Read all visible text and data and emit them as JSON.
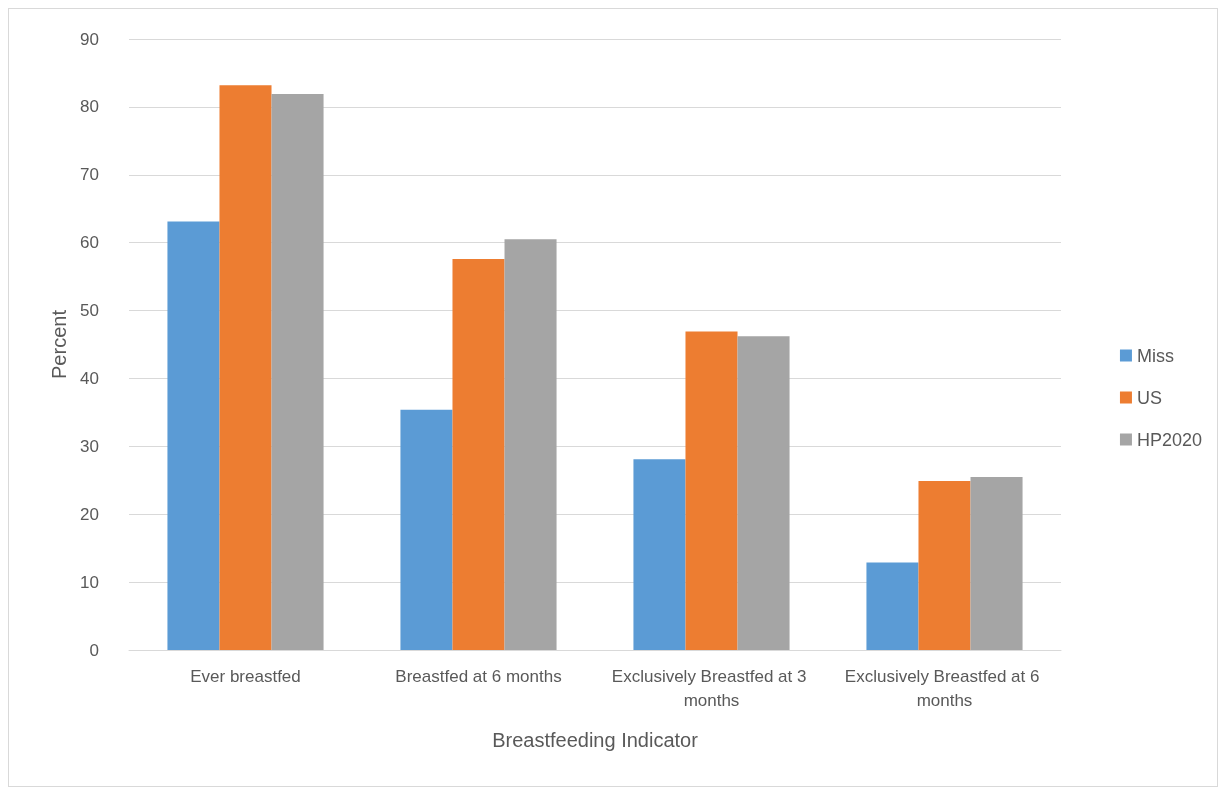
{
  "chart_data": {
    "type": "bar",
    "xlabel": "Breastfeeding Indicator",
    "ylabel": "Percent",
    "categories": [
      "Ever breastfed",
      "Breastfed at 6 months",
      "Exclusively Breastfed at 3 months",
      "Exclusively Breastfed at 6 months"
    ],
    "series": [
      {
        "name": "Miss",
        "color": "#5b9bd5",
        "values": [
          63.1,
          35.4,
          28.1,
          12.9
        ]
      },
      {
        "name": "US",
        "color": "#ed7d31",
        "values": [
          83.2,
          57.6,
          46.9,
          24.9
        ]
      },
      {
        "name": "HP2020",
        "color": "#a5a5a5",
        "values": [
          81.9,
          60.5,
          46.2,
          25.5
        ]
      }
    ],
    "ylim": [
      0,
      90
    ],
    "yticks": [
      0,
      10,
      20,
      30,
      40,
      50,
      60,
      70,
      80,
      90
    ],
    "grid": "y",
    "legend": "right"
  }
}
